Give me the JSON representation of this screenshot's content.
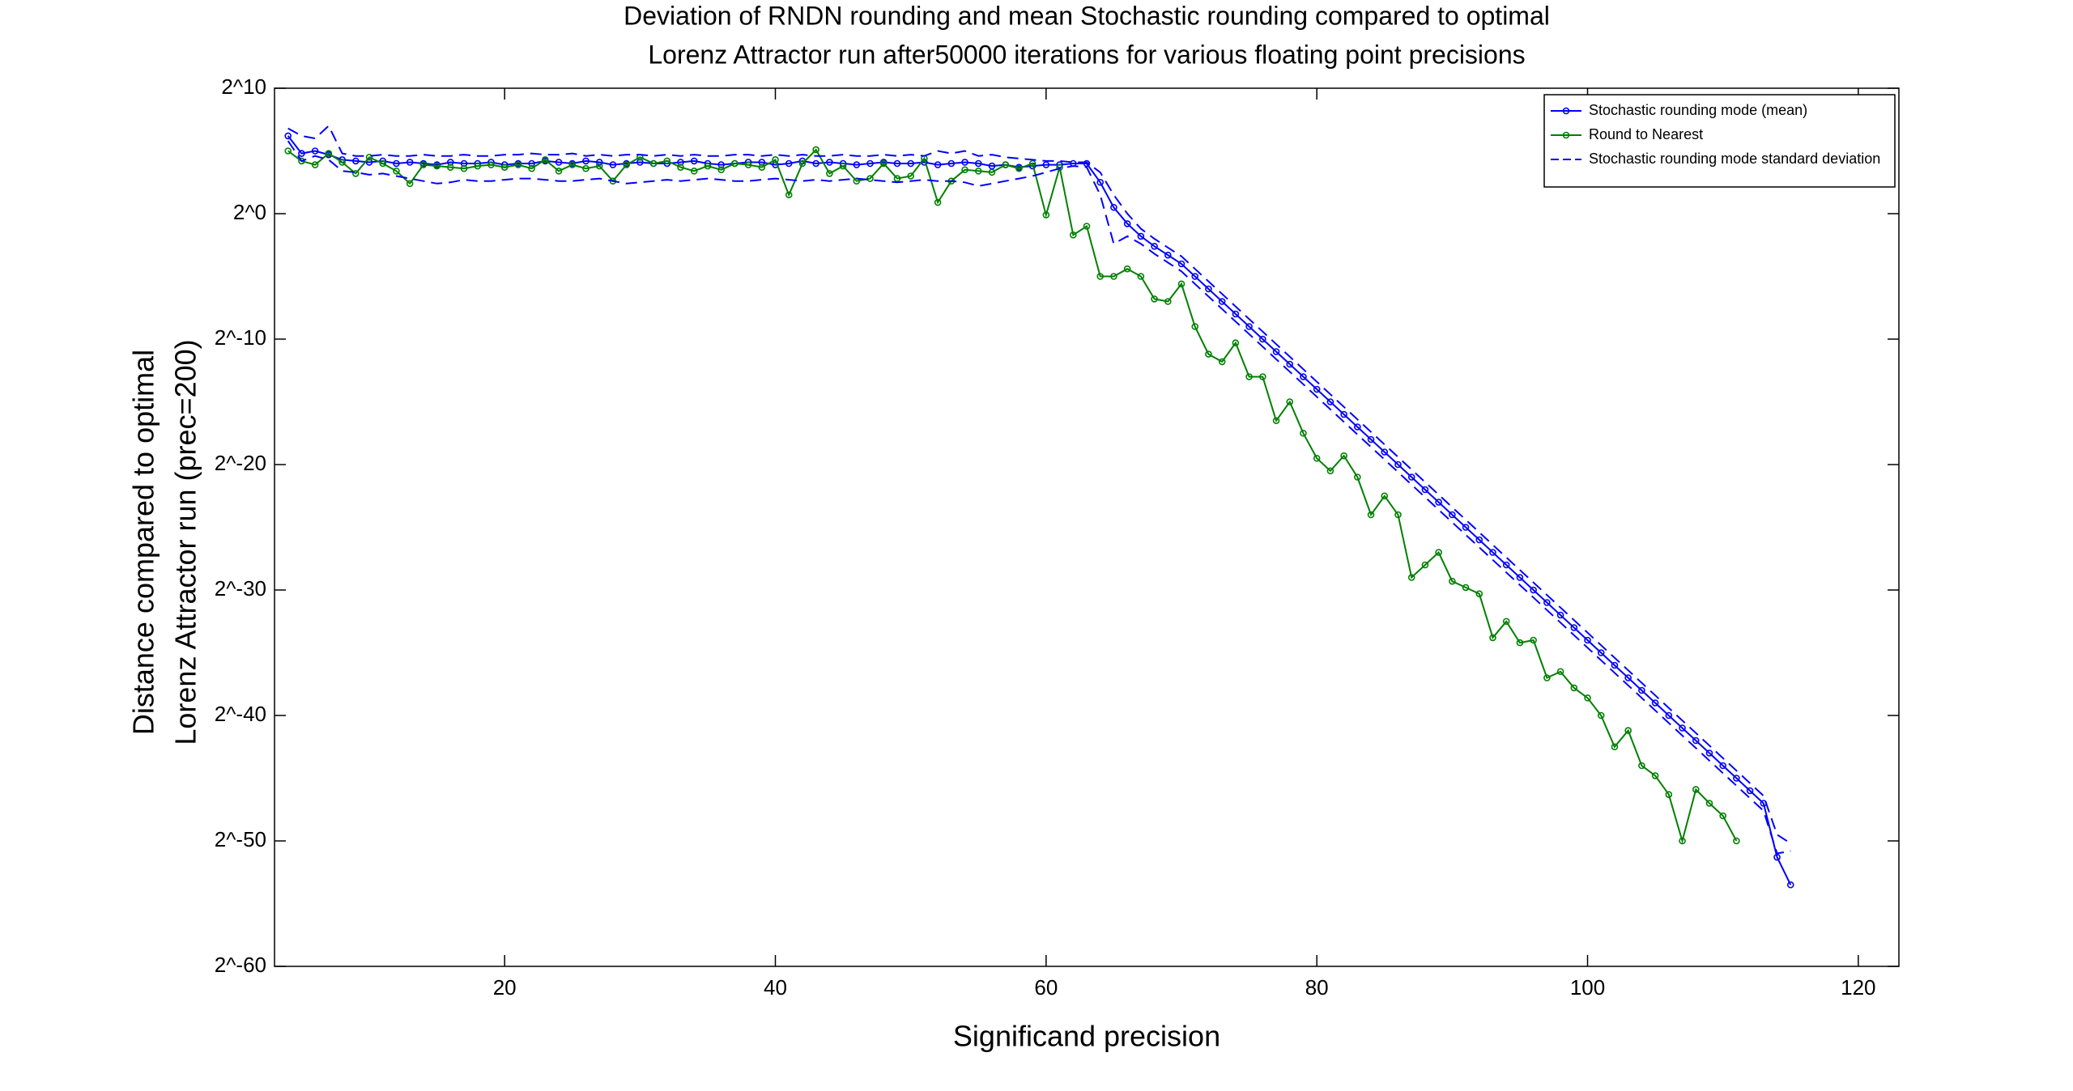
{
  "chart_data": {
    "type": "line",
    "title": [
      "Deviation of RNDN rounding and mean Stochastic rounding compared to optimal",
      "Lorenz Attractor run after50000 iterations for various floating point precisions"
    ],
    "xlabel": "Significand precision",
    "ylabel": [
      "Distance compared to optimal",
      "Lorenz Attractor run (prec=200)"
    ],
    "x": [
      4,
      5,
      6,
      7,
      8,
      9,
      10,
      11,
      12,
      13,
      14,
      15,
      16,
      17,
      18,
      19,
      20,
      21,
      22,
      23,
      24,
      25,
      26,
      27,
      28,
      29,
      30,
      31,
      32,
      33,
      34,
      35,
      36,
      37,
      38,
      39,
      40,
      41,
      42,
      43,
      44,
      45,
      46,
      47,
      48,
      49,
      50,
      51,
      52,
      53,
      54,
      55,
      56,
      57,
      58,
      59,
      60,
      61,
      62,
      63,
      64,
      65,
      66,
      67,
      68,
      69,
      70,
      71,
      72,
      73,
      74,
      75,
      76,
      77,
      78,
      79,
      80,
      81,
      82,
      83,
      84,
      85,
      86,
      87,
      88,
      89,
      90,
      91,
      92,
      93,
      94,
      95,
      96,
      97,
      98,
      99,
      100,
      101,
      102,
      103,
      104,
      105,
      106,
      107,
      108,
      109,
      110,
      111,
      112,
      113,
      114,
      115
    ],
    "series": [
      {
        "name": "Stochastic rounding mode (mean)",
        "color": "#0000ff",
        "marker": true,
        "dash": false,
        "values": [
          6.2,
          4.8,
          5.0,
          4.7,
          4.3,
          4.2,
          4.1,
          4.2,
          4.0,
          4.1,
          4.0,
          3.9,
          4.1,
          4.0,
          4.0,
          4.1,
          3.9,
          4.0,
          4.0,
          4.2,
          4.1,
          4.0,
          4.2,
          4.1,
          3.9,
          4.0,
          4.1,
          4.0,
          4.0,
          4.1,
          4.2,
          4.0,
          3.9,
          4.0,
          4.1,
          4.1,
          3.9,
          4.0,
          4.2,
          4.0,
          4.1,
          4.0,
          3.9,
          4.0,
          4.1,
          4.0,
          4.0,
          4.1,
          3.9,
          4.0,
          4.1,
          4.0,
          3.8,
          3.9,
          3.7,
          3.8,
          3.9,
          3.9,
          4.0,
          4.0,
          2.5,
          0.5,
          -0.8,
          -1.8,
          -2.6,
          -3.3,
          -4,
          -5,
          -6,
          -7,
          -8,
          -9,
          -10,
          -11,
          -12,
          -13,
          -14,
          -15,
          -16,
          -17,
          -18,
          -19,
          -20,
          -21,
          -22,
          -23,
          -24,
          -25,
          -26,
          -27,
          -28,
          -29,
          -30,
          -31,
          -32,
          -33,
          -34,
          -35,
          -36,
          -37,
          -38,
          -39,
          -40,
          -41,
          -42,
          -43,
          -44,
          -45,
          -46,
          -47,
          -51.3,
          -53.5
        ]
      },
      {
        "name": "Round to Nearest",
        "color": "#008000",
        "marker": true,
        "dash": false,
        "values": [
          5.0,
          4.2,
          3.9,
          4.8,
          4.1,
          3.2,
          4.5,
          4.0,
          3.4,
          2.4,
          3.9,
          3.8,
          3.7,
          3.6,
          3.8,
          3.9,
          3.7,
          3.9,
          3.6,
          4.3,
          3.4,
          3.9,
          3.6,
          3.8,
          2.6,
          3.9,
          4.5,
          4.0,
          4.2,
          3.7,
          3.4,
          3.8,
          3.5,
          4.0,
          3.9,
          3.7,
          4.3,
          1.5,
          4.0,
          5.1,
          3.2,
          3.8,
          2.6,
          2.8,
          4.0,
          2.8,
          3.0,
          4.4,
          0.9,
          2.6,
          3.5,
          3.4,
          3.3,
          3.9,
          3.6,
          4.0,
          -0.1,
          3.7,
          -1.7,
          -1.0,
          -5,
          -5,
          -4.4,
          -5,
          -6.8,
          -7,
          -5.6,
          -9,
          -11.2,
          -11.8,
          -10.3,
          -13,
          -13,
          -16.5,
          -15,
          -17.5,
          -19.5,
          -20.5,
          -19.3,
          -21,
          -24,
          -22.5,
          -24,
          -29,
          -28,
          -27,
          -29.3,
          -29.8,
          -30.3,
          -33.8,
          -32.5,
          -34.2,
          -34,
          -37,
          -36.5,
          -37.8,
          -38.6,
          -40,
          -42.5,
          -41.2,
          -44,
          -44.8,
          -46.3,
          -50,
          -45.9,
          -47,
          -48,
          -50,
          null,
          null,
          null,
          null
        ]
      },
      {
        "name": "Stochastic rounding mode standard deviation",
        "color": "#0000ff",
        "marker": false,
        "dash": true,
        "values": [
          6.8,
          6.2,
          6.0,
          7.0,
          4.8,
          4.6,
          4.6,
          4.7,
          4.6,
          4.6,
          4.7,
          4.6,
          4.6,
          4.7,
          4.6,
          4.6,
          4.7,
          4.7,
          4.8,
          4.7,
          4.7,
          4.8,
          4.6,
          4.7,
          4.6,
          4.7,
          4.7,
          4.6,
          4.7,
          4.6,
          4.7,
          4.6,
          4.6,
          4.7,
          4.7,
          4.6,
          4.7,
          4.6,
          4.7,
          4.6,
          4.6,
          4.7,
          4.6,
          4.6,
          4.7,
          4.6,
          4.7,
          4.6,
          5.0,
          4.8,
          5.0,
          4.6,
          4.7,
          4.5,
          4.4,
          4.3,
          4.2,
          4.2,
          4.1,
          4.1,
          3.3,
          1.5,
          0.0,
          -1.2,
          -2.0,
          -2.7,
          -3.4,
          -4.4,
          -5.4,
          -6.4,
          -7.4,
          -8.4,
          -9.4,
          -10.4,
          -11.4,
          -12.4,
          -13.4,
          -14.4,
          -15.4,
          -16.4,
          -17.4,
          -18.4,
          -19.4,
          -20.4,
          -21.4,
          -22.4,
          -23.4,
          -24.4,
          -25.4,
          -26.4,
          -27.4,
          -28.4,
          -29.4,
          -30.4,
          -31.4,
          -32.4,
          -33.4,
          -34.4,
          -35.4,
          -36.4,
          -37.4,
          -38.4,
          -39.4,
          -40.4,
          -41.4,
          -42.4,
          -43.4,
          -44.4,
          -45.4,
          -46.4,
          -49.5,
          -50.2
        ],
        "lower_values": [
          5.8,
          4.2,
          4.6,
          4.3,
          3.4,
          3.3,
          3.1,
          3.2,
          3.0,
          2.8,
          2.6,
          2.4,
          2.5,
          2.7,
          2.6,
          2.6,
          2.7,
          2.8,
          2.8,
          2.7,
          2.6,
          2.6,
          2.7,
          2.8,
          2.6,
          2.4,
          2.5,
          2.6,
          2.7,
          2.6,
          2.7,
          2.8,
          2.7,
          2.6,
          2.6,
          2.7,
          2.8,
          2.7,
          2.6,
          2.7,
          2.6,
          2.7,
          2.8,
          2.7,
          2.6,
          2.5,
          2.6,
          2.7,
          2.6,
          2.6,
          2.5,
          2.2,
          2.4,
          2.6,
          2.8,
          3.0,
          3.3,
          3.6,
          3.8,
          3.7,
          1.5,
          -2.4,
          -1.8,
          -2.4,
          -3.2,
          -3.9,
          -4.6,
          -5.6,
          -6.6,
          -7.6,
          -8.6,
          -9.6,
          -10.6,
          -11.6,
          -12.6,
          -13.6,
          -14.6,
          -15.6,
          -16.6,
          -17.6,
          -18.6,
          -19.6,
          -20.6,
          -21.6,
          -22.6,
          -23.6,
          -24.6,
          -25.6,
          -26.6,
          -27.6,
          -28.6,
          -29.6,
          -30.6,
          -31.6,
          -32.6,
          -33.6,
          -34.6,
          -35.6,
          -36.6,
          -37.6,
          -38.6,
          -39.6,
          -40.6,
          -41.6,
          -42.6,
          -43.6,
          -44.6,
          -45.6,
          -46.6,
          -47.6,
          -51.0,
          -50.8
        ]
      }
    ],
    "xlim": [
      3,
      123
    ],
    "xticks": [
      20,
      40,
      60,
      80,
      100,
      120
    ],
    "ylim": [
      -60,
      10
    ],
    "yticks": [
      {
        "value": -60,
        "label": "2^-60"
      },
      {
        "value": -50,
        "label": "2^-50"
      },
      {
        "value": -40,
        "label": "2^-40"
      },
      {
        "value": -30,
        "label": "2^-30"
      },
      {
        "value": -20,
        "label": "2^-20"
      },
      {
        "value": -10,
        "label": "2^-10"
      },
      {
        "value": 0,
        "label": "2^0"
      },
      {
        "value": 10,
        "label": "2^10"
      }
    ],
    "grid": false,
    "legend": "upper right"
  }
}
